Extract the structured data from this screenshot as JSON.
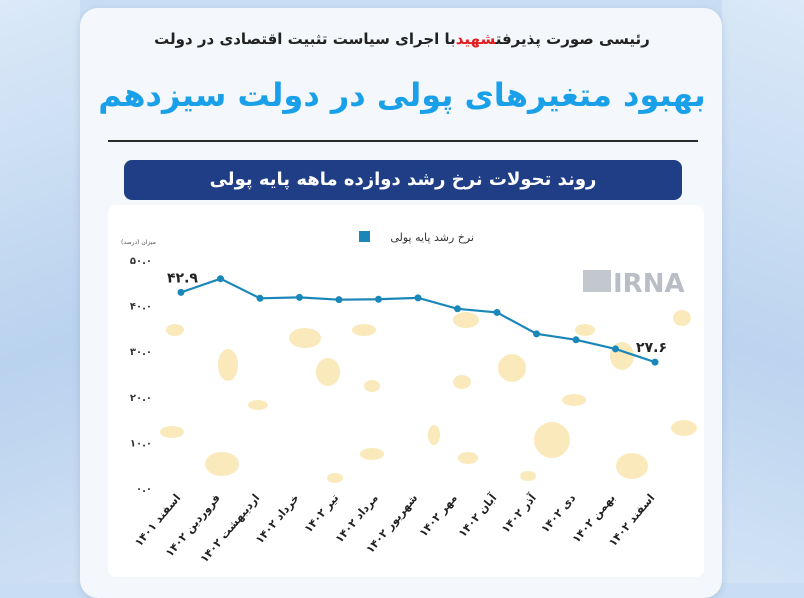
{
  "header": {
    "subtitle_pre": "با اجرای سیاست تثبیت اقتصادی در دولت ",
    "subtitle_highlight": "شهید",
    "subtitle_post": " رئیسی صورت پذیرفت",
    "title": "بهبود متغیرهای پولی در دولت سیزدهم",
    "banner": "روند تحولات نرخ رشد دوازده ماهه پایه پولی",
    "watermark": "IRNA"
  },
  "colors": {
    "accent": "#1aa0e8",
    "banner": "#203e86",
    "highlight": "#e02020",
    "series": "#1b87b9"
  },
  "chart_data": {
    "type": "line",
    "ylabel": "میزان (درصد)",
    "ylim": [
      0,
      50
    ],
    "yticks": [
      "۰.۰",
      "۱۰.۰",
      "۲۰.۰",
      "۳۰.۰",
      "۴۰.۰",
      "۵۰.۰"
    ],
    "ytick_values": [
      0,
      10,
      20,
      30,
      40,
      50
    ],
    "categories": [
      "اسفند ۱۴۰۱",
      "فروردین ۱۴۰۲",
      "اردیبهشت ۱۴۰۲",
      "خرداد ۱۴۰۲",
      "تیر ۱۴۰۲",
      "مرداد ۱۴۰۲",
      "شهریور ۱۴۰۲",
      "مهر ۱۴۰۲",
      "آبان ۱۴۰۲",
      "آذر ۱۴۰۲",
      "دی ۱۴۰۲",
      "بهمن ۱۴۰۲",
      "اسفند ۱۴۰۲"
    ],
    "series": [
      {
        "name": "نرخ رشد پایه پولی",
        "values": [
          42.9,
          45.9,
          41.6,
          41.8,
          41.3,
          41.4,
          41.7,
          39.3,
          38.5,
          33.8,
          32.5,
          30.5,
          27.6
        ]
      }
    ],
    "data_labels": [
      {
        "index": 0,
        "text": "۴۲.۹"
      },
      {
        "index": 12,
        "text": "۲۷.۶"
      }
    ],
    "legend": "top-center",
    "grid": false
  }
}
